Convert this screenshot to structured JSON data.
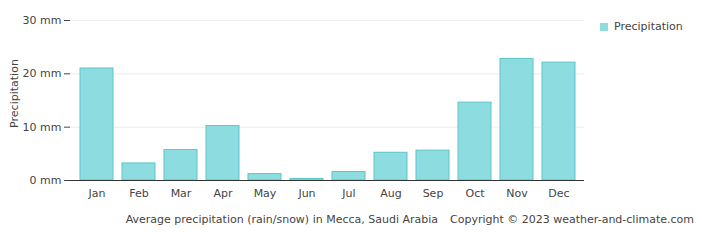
{
  "chart_data": {
    "type": "bar",
    "title": "Average precipitation (rain/snow) in Mecca, Saudi Arabia",
    "annotations": [
      "Copyright © 2023 weather-and-climate.com"
    ],
    "y_label": "Precipitation",
    "categories": [
      "Jan",
      "Feb",
      "Mar",
      "Apr",
      "May",
      "Jun",
      "Jul",
      "Aug",
      "Sep",
      "Oct",
      "Nov",
      "Dec"
    ],
    "series": [
      {
        "name": "Precipitation",
        "color": "#8ddde0",
        "values": [
          21,
          3.2,
          5.7,
          10.2,
          1.2,
          0.3,
          1.6,
          5.2,
          5.6,
          14.6,
          22.8,
          22.1
        ]
      }
    ],
    "ylim": [
      0,
      30
    ],
    "yticks": [
      {
        "value": 0,
        "label": "0 mm"
      },
      {
        "value": 10,
        "label": "10 mm"
      },
      {
        "value": 20,
        "label": "20 mm"
      },
      {
        "value": 30,
        "label": "30 mm"
      }
    ],
    "grid": true,
    "legend": "right"
  }
}
